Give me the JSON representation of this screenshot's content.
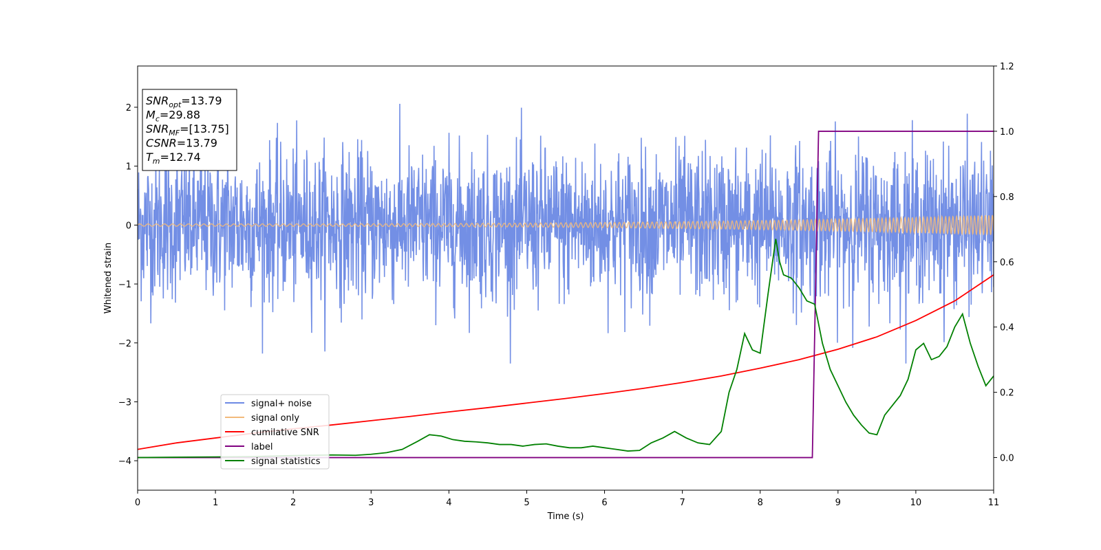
{
  "chart_data": {
    "type": "line",
    "xlabel": "Time (s)",
    "ylabel": "Whitened strain",
    "xlim": [
      0,
      11
    ],
    "ylim_left": [
      -4.5,
      2.7
    ],
    "ylim_right": [
      -0.1,
      1.2
    ],
    "x_ticks": [
      0,
      1,
      2,
      3,
      4,
      5,
      6,
      7,
      8,
      9,
      10,
      11
    ],
    "y_left_ticks": [
      -4,
      -3,
      -2,
      -1,
      0,
      1,
      2
    ],
    "y_right_ticks": [
      0.0,
      0.2,
      0.4,
      0.6,
      0.8,
      1.0,
      1.2
    ],
    "grid": false,
    "legend_position": "lower-left",
    "annotation_box": {
      "lines": [
        {
          "sym": "SNR",
          "sub": "opt",
          "value": "=13.79"
        },
        {
          "sym": "M",
          "sub": "c",
          "value": "=29.88"
        },
        {
          "sym": "SNR",
          "sub": "MF",
          "value": "=[13.75]"
        },
        {
          "sym": "CSNR",
          "sub": "",
          "value": "=13.79"
        },
        {
          "sym": "T",
          "sub": "m",
          "value": "=12.74"
        }
      ]
    },
    "series": [
      {
        "name": "signal+ noise",
        "axis": "left",
        "color": "#6c89e4",
        "description_values": {
          "noise_std": 0.55,
          "x_range": [
            0,
            11
          ]
        }
      },
      {
        "name": "signal only",
        "axis": "left",
        "color": "#f2b97a",
        "chirp": {
          "f0": 9.2,
          "f1": 22,
          "amp_start": 0.02,
          "amp_end": 0.17
        }
      },
      {
        "name": "cumilative SNR",
        "axis": "right",
        "color": "#ff0000",
        "x": [
          0,
          0.5,
          1,
          1.5,
          2,
          2.5,
          3,
          3.5,
          4,
          4.5,
          5,
          5.5,
          6,
          6.5,
          7,
          7.5,
          8,
          8.5,
          9,
          9.5,
          10,
          10.5,
          11
        ],
        "values": [
          0.025,
          0.045,
          0.06,
          0.075,
          0.088,
          0.1,
          0.113,
          0.126,
          0.14,
          0.153,
          0.167,
          0.181,
          0.196,
          0.212,
          0.23,
          0.25,
          0.274,
          0.3,
          0.332,
          0.37,
          0.42,
          0.48,
          0.56
        ]
      },
      {
        "name": "label",
        "axis": "right",
        "color": "#800080",
        "x": [
          0,
          8.67,
          8.75,
          11
        ],
        "values": [
          0.0,
          0.0,
          1.0,
          1.0
        ]
      },
      {
        "name": "signal statistics",
        "axis": "right",
        "color": "#008000",
        "x": [
          0,
          0.5,
          1,
          1.5,
          2,
          2.5,
          2.8,
          3.0,
          3.2,
          3.4,
          3.6,
          3.75,
          3.9,
          4.05,
          4.2,
          4.35,
          4.5,
          4.65,
          4.8,
          4.95,
          5.1,
          5.25,
          5.4,
          5.55,
          5.7,
          5.85,
          6.0,
          6.15,
          6.3,
          6.45,
          6.6,
          6.75,
          6.9,
          7.05,
          7.2,
          7.35,
          7.5,
          7.6,
          7.7,
          7.8,
          7.9,
          8.0,
          8.1,
          8.2,
          8.25,
          8.3,
          8.4,
          8.5,
          8.6,
          8.7,
          8.8,
          8.9,
          9.0,
          9.1,
          9.2,
          9.3,
          9.4,
          9.5,
          9.6,
          9.7,
          9.8,
          9.9,
          10.0,
          10.1,
          10.2,
          10.3,
          10.4,
          10.5,
          10.6,
          10.7,
          10.8,
          10.9,
          11.0
        ],
        "values": [
          0.0,
          0.001,
          0.002,
          0.003,
          0.006,
          0.008,
          0.007,
          0.01,
          0.015,
          0.025,
          0.05,
          0.07,
          0.066,
          0.055,
          0.05,
          0.048,
          0.045,
          0.04,
          0.04,
          0.035,
          0.04,
          0.042,
          0.035,
          0.03,
          0.03,
          0.035,
          0.03,
          0.025,
          0.02,
          0.022,
          0.045,
          0.06,
          0.08,
          0.06,
          0.045,
          0.04,
          0.08,
          0.2,
          0.27,
          0.38,
          0.33,
          0.32,
          0.5,
          0.67,
          0.6,
          0.56,
          0.55,
          0.52,
          0.48,
          0.47,
          0.35,
          0.27,
          0.22,
          0.17,
          0.13,
          0.1,
          0.075,
          0.07,
          0.13,
          0.16,
          0.19,
          0.24,
          0.33,
          0.35,
          0.3,
          0.31,
          0.34,
          0.4,
          0.44,
          0.35,
          0.28,
          0.22,
          0.25
        ]
      }
    ]
  }
}
